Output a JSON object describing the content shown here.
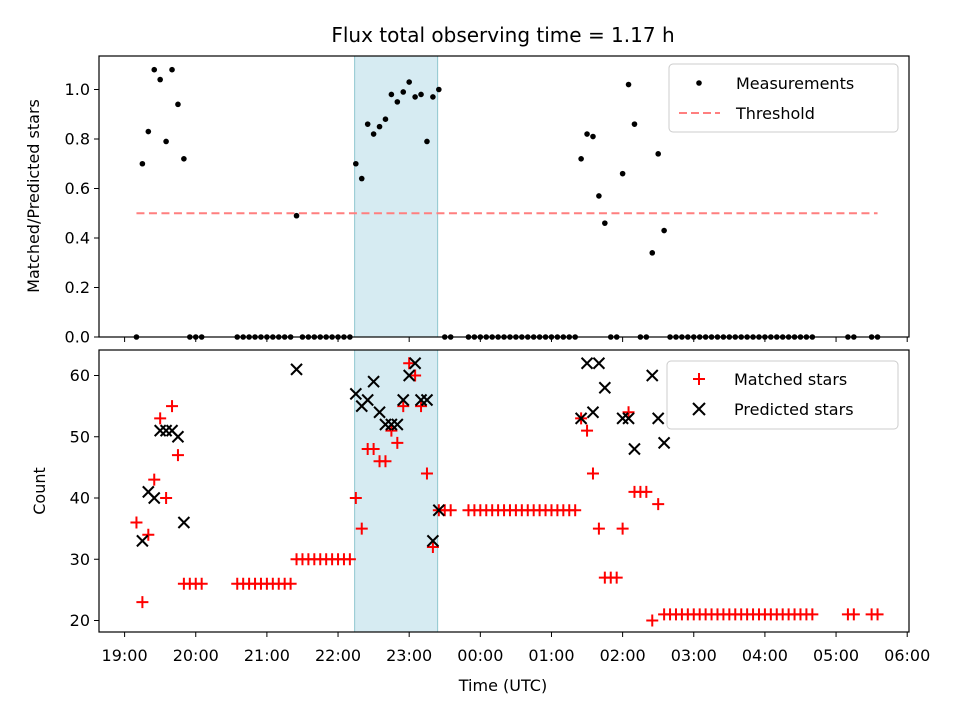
{
  "chart_data": [
    {
      "type": "scatter",
      "title": "Flux total observing time = 1.17 h",
      "xlabel": "",
      "ylabel": "Matched/Predicted stars",
      "ylim": [
        0,
        1.13
      ],
      "xlim": [
        "19:05",
        "06:00"
      ],
      "yticks": [
        "0.0",
        "0.2",
        "0.4",
        "0.6",
        "0.8",
        "1.0"
      ],
      "legend_position": "top-right",
      "highlight_span": [
        "22:14",
        "23:24"
      ],
      "series": [
        {
          "name": "Measurements",
          "color": "#000000",
          "marker": "dot",
          "points": [
            [
              "19:10",
              0
            ],
            [
              "19:15",
              0.7
            ],
            [
              "19:20",
              0.83
            ],
            [
              "19:25",
              1.08
            ],
            [
              "19:30",
              1.04
            ],
            [
              "19:35",
              0.79
            ],
            [
              "19:40",
              1.08
            ],
            [
              "19:45",
              0.94
            ],
            [
              "19:50",
              0.72
            ],
            [
              "19:55",
              0
            ],
            [
              "20:00",
              0
            ],
            [
              "20:05",
              0
            ],
            [
              "20:35",
              0
            ],
            [
              "20:40",
              0
            ],
            [
              "20:45",
              0
            ],
            [
              "20:50",
              0
            ],
            [
              "20:55",
              0
            ],
            [
              "21:00",
              0
            ],
            [
              "21:05",
              0
            ],
            [
              "21:10",
              0
            ],
            [
              "21:15",
              0
            ],
            [
              "21:20",
              0
            ],
            [
              "21:25",
              0.49
            ],
            [
              "21:30",
              0
            ],
            [
              "21:35",
              0
            ],
            [
              "21:40",
              0
            ],
            [
              "21:45",
              0
            ],
            [
              "21:50",
              0
            ],
            [
              "21:55",
              0
            ],
            [
              "22:00",
              0
            ],
            [
              "22:05",
              0
            ],
            [
              "22:10",
              0
            ],
            [
              "22:15",
              0.7
            ],
            [
              "22:20",
              0.64
            ],
            [
              "22:25",
              0.86
            ],
            [
              "22:30",
              0.82
            ],
            [
              "22:35",
              0.85
            ],
            [
              "22:40",
              0.88
            ],
            [
              "22:45",
              0.98
            ],
            [
              "22:50",
              0.95
            ],
            [
              "22:55",
              0.99
            ],
            [
              "23:00",
              1.03
            ],
            [
              "23:05",
              0.97
            ],
            [
              "23:10",
              0.98
            ],
            [
              "23:15",
              0.79
            ],
            [
              "23:20",
              0.97
            ],
            [
              "23:25",
              1.0
            ],
            [
              "23:30",
              0
            ],
            [
              "23:35",
              0
            ],
            [
              "23:50",
              0
            ],
            [
              "23:55",
              0
            ],
            [
              "00:00",
              0
            ],
            [
              "00:05",
              0
            ],
            [
              "00:10",
              0
            ],
            [
              "00:15",
              0
            ],
            [
              "00:20",
              0
            ],
            [
              "00:25",
              0
            ],
            [
              "00:30",
              0
            ],
            [
              "00:35",
              0
            ],
            [
              "00:40",
              0
            ],
            [
              "00:45",
              0
            ],
            [
              "00:50",
              0
            ],
            [
              "00:55",
              0
            ],
            [
              "01:00",
              0
            ],
            [
              "01:05",
              0
            ],
            [
              "01:10",
              0
            ],
            [
              "01:15",
              0
            ],
            [
              "01:20",
              0
            ],
            [
              "01:25",
              0.72
            ],
            [
              "01:30",
              0.82
            ],
            [
              "01:35",
              0.81
            ],
            [
              "01:40",
              0.57
            ],
            [
              "01:45",
              0.46
            ],
            [
              "01:50",
              0
            ],
            [
              "01:55",
              0
            ],
            [
              "02:00",
              0.66
            ],
            [
              "02:05",
              1.02
            ],
            [
              "02:10",
              0.86
            ],
            [
              "02:15",
              0
            ],
            [
              "02:20",
              0
            ],
            [
              "02:25",
              0.34
            ],
            [
              "02:30",
              0.74
            ],
            [
              "02:35",
              0.43
            ],
            [
              "02:40",
              0
            ],
            [
              "02:45",
              0
            ],
            [
              "02:50",
              0
            ],
            [
              "02:55",
              0
            ],
            [
              "03:00",
              0
            ],
            [
              "03:05",
              0
            ],
            [
              "03:10",
              0
            ],
            [
              "03:15",
              0
            ],
            [
              "03:20",
              0
            ],
            [
              "03:25",
              0
            ],
            [
              "03:30",
              0
            ],
            [
              "03:35",
              0
            ],
            [
              "03:40",
              0
            ],
            [
              "03:45",
              0
            ],
            [
              "03:50",
              0
            ],
            [
              "03:55",
              0
            ],
            [
              "04:00",
              0
            ],
            [
              "04:05",
              0
            ],
            [
              "04:10",
              0
            ],
            [
              "04:15",
              0
            ],
            [
              "04:20",
              0
            ],
            [
              "04:25",
              0
            ],
            [
              "04:30",
              0
            ],
            [
              "04:35",
              0
            ],
            [
              "04:40",
              0
            ],
            [
              "05:10",
              0
            ],
            [
              "05:15",
              0
            ],
            [
              "05:30",
              0
            ],
            [
              "05:35",
              0
            ]
          ]
        },
        {
          "name": "Threshold",
          "color": "#ff7f7f",
          "marker": "dashed-line",
          "points": [
            [
              "19:10",
              0.5
            ],
            [
              "05:35",
              0.5
            ]
          ]
        }
      ]
    },
    {
      "type": "scatter",
      "title": "",
      "xlabel": "Time (UTC)",
      "ylabel": "Count",
      "ylim": [
        18,
        64
      ],
      "xlim": [
        "19:05",
        "06:00"
      ],
      "yticks": [
        "20",
        "30",
        "40",
        "50",
        "60"
      ],
      "xticks": [
        "19:00",
        "20:00",
        "21:00",
        "22:00",
        "23:00",
        "00:00",
        "01:00",
        "02:00",
        "03:00",
        "04:00",
        "05:00",
        "06:00"
      ],
      "legend_position": "top-right",
      "highlight_span": [
        "22:14",
        "23:24"
      ],
      "series": [
        {
          "name": "Matched stars",
          "color": "#ff0000",
          "marker": "plus",
          "points": [
            [
              "19:10",
              36
            ],
            [
              "19:15",
              23
            ],
            [
              "19:20",
              34
            ],
            [
              "19:25",
              43
            ],
            [
              "19:30",
              53
            ],
            [
              "19:35",
              40
            ],
            [
              "19:40",
              55
            ],
            [
              "19:45",
              47
            ],
            [
              "19:50",
              26
            ],
            [
              "19:55",
              26
            ],
            [
              "20:00",
              26
            ],
            [
              "20:05",
              26
            ],
            [
              "20:35",
              26
            ],
            [
              "20:40",
              26
            ],
            [
              "20:45",
              26
            ],
            [
              "20:50",
              26
            ],
            [
              "20:55",
              26
            ],
            [
              "21:00",
              26
            ],
            [
              "21:05",
              26
            ],
            [
              "21:10",
              26
            ],
            [
              "21:15",
              26
            ],
            [
              "21:20",
              26
            ],
            [
              "21:25",
              30
            ],
            [
              "21:30",
              30
            ],
            [
              "21:35",
              30
            ],
            [
              "21:40",
              30
            ],
            [
              "21:45",
              30
            ],
            [
              "21:50",
              30
            ],
            [
              "21:55",
              30
            ],
            [
              "22:00",
              30
            ],
            [
              "22:05",
              30
            ],
            [
              "22:10",
              30
            ],
            [
              "22:15",
              40
            ],
            [
              "22:20",
              35
            ],
            [
              "22:25",
              48
            ],
            [
              "22:30",
              48
            ],
            [
              "22:35",
              46
            ],
            [
              "22:40",
              46
            ],
            [
              "22:45",
              51
            ],
            [
              "22:50",
              49
            ],
            [
              "22:55",
              55
            ],
            [
              "23:00",
              62
            ],
            [
              "23:05",
              60
            ],
            [
              "23:10",
              55
            ],
            [
              "23:15",
              44
            ],
            [
              "23:20",
              32
            ],
            [
              "23:25",
              38
            ],
            [
              "23:30",
              38
            ],
            [
              "23:35",
              38
            ],
            [
              "23:50",
              38
            ],
            [
              "23:55",
              38
            ],
            [
              "00:00",
              38
            ],
            [
              "00:05",
              38
            ],
            [
              "00:10",
              38
            ],
            [
              "00:15",
              38
            ],
            [
              "00:20",
              38
            ],
            [
              "00:25",
              38
            ],
            [
              "00:30",
              38
            ],
            [
              "00:35",
              38
            ],
            [
              "00:40",
              38
            ],
            [
              "00:45",
              38
            ],
            [
              "00:50",
              38
            ],
            [
              "00:55",
              38
            ],
            [
              "01:00",
              38
            ],
            [
              "01:05",
              38
            ],
            [
              "01:10",
              38
            ],
            [
              "01:15",
              38
            ],
            [
              "01:20",
              38
            ],
            [
              "01:25",
              53
            ],
            [
              "01:30",
              51
            ],
            [
              "01:35",
              44
            ],
            [
              "01:40",
              35
            ],
            [
              "01:45",
              27
            ],
            [
              "01:50",
              27
            ],
            [
              "01:55",
              27
            ],
            [
              "02:00",
              35
            ],
            [
              "02:05",
              54
            ],
            [
              "02:10",
              41
            ],
            [
              "02:15",
              41
            ],
            [
              "02:20",
              41
            ],
            [
              "02:25",
              20
            ],
            [
              "02:30",
              39
            ],
            [
              "02:35",
              21
            ],
            [
              "02:40",
              21
            ],
            [
              "02:45",
              21
            ],
            [
              "02:50",
              21
            ],
            [
              "02:55",
              21
            ],
            [
              "03:00",
              21
            ],
            [
              "03:05",
              21
            ],
            [
              "03:10",
              21
            ],
            [
              "03:15",
              21
            ],
            [
              "03:20",
              21
            ],
            [
              "03:25",
              21
            ],
            [
              "03:30",
              21
            ],
            [
              "03:35",
              21
            ],
            [
              "03:40",
              21
            ],
            [
              "03:45",
              21
            ],
            [
              "03:50",
              21
            ],
            [
              "03:55",
              21
            ],
            [
              "04:00",
              21
            ],
            [
              "04:05",
              21
            ],
            [
              "04:10",
              21
            ],
            [
              "04:15",
              21
            ],
            [
              "04:20",
              21
            ],
            [
              "04:25",
              21
            ],
            [
              "04:30",
              21
            ],
            [
              "04:35",
              21
            ],
            [
              "04:40",
              21
            ],
            [
              "05:10",
              21
            ],
            [
              "05:15",
              21
            ],
            [
              "05:30",
              21
            ],
            [
              "05:35",
              21
            ]
          ]
        },
        {
          "name": "Predicted stars",
          "color": "#000000",
          "marker": "x",
          "points": [
            [
              "19:15",
              33
            ],
            [
              "19:20",
              41
            ],
            [
              "19:25",
              40
            ],
            [
              "19:30",
              51
            ],
            [
              "19:35",
              51
            ],
            [
              "19:40",
              51
            ],
            [
              "19:45",
              50
            ],
            [
              "19:50",
              36
            ],
            [
              "21:25",
              61
            ],
            [
              "22:15",
              57
            ],
            [
              "22:20",
              55
            ],
            [
              "22:25",
              56
            ],
            [
              "22:30",
              59
            ],
            [
              "22:35",
              54
            ],
            [
              "22:40",
              52
            ],
            [
              "22:45",
              52
            ],
            [
              "22:50",
              52
            ],
            [
              "22:55",
              56
            ],
            [
              "23:00",
              60
            ],
            [
              "23:05",
              62
            ],
            [
              "23:10",
              56
            ],
            [
              "23:15",
              56
            ],
            [
              "23:20",
              33
            ],
            [
              "23:25",
              38
            ],
            [
              "01:25",
              53
            ],
            [
              "01:30",
              62
            ],
            [
              "01:35",
              54
            ],
            [
              "01:40",
              62
            ],
            [
              "01:45",
              58
            ],
            [
              "02:00",
              53
            ],
            [
              "02:05",
              53
            ],
            [
              "02:10",
              48
            ],
            [
              "02:25",
              60
            ],
            [
              "02:30",
              53
            ],
            [
              "02:35",
              49
            ]
          ]
        }
      ]
    }
  ]
}
